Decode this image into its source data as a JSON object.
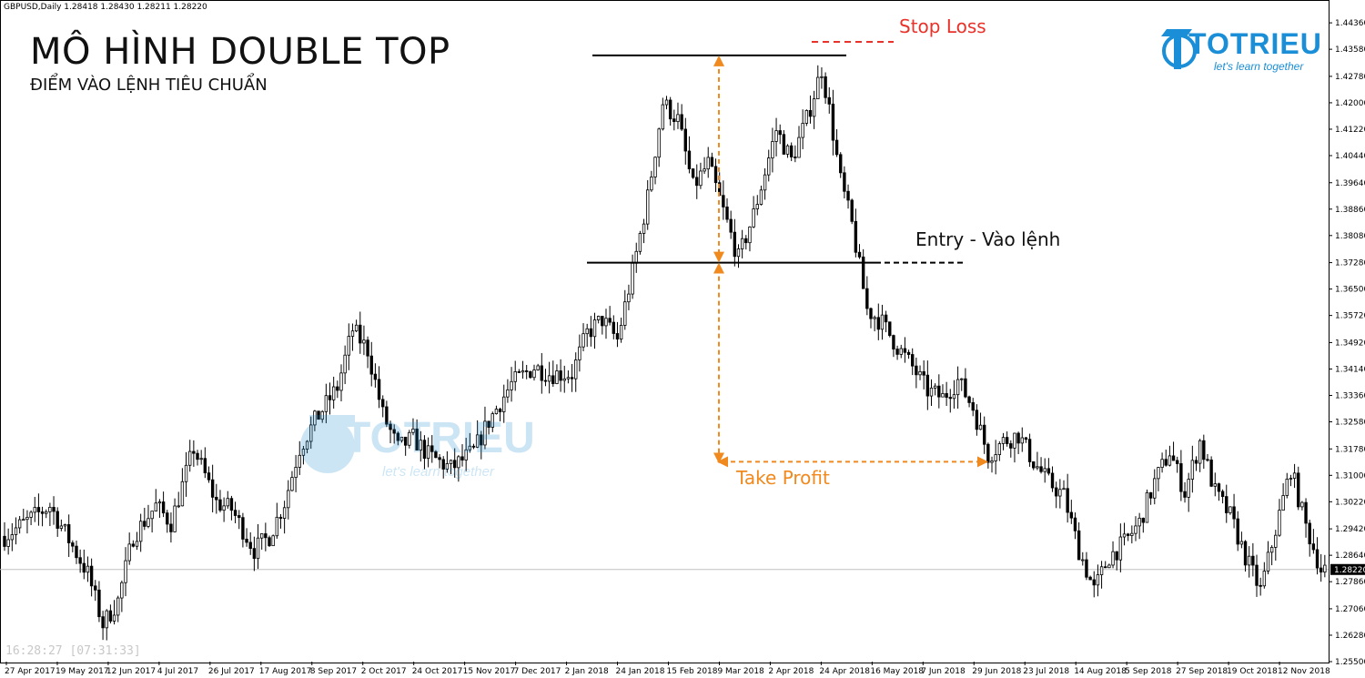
{
  "header": {
    "symbol_line": "GBPUSD,Daily  1.28418 1.28430 1.28211 1.28220",
    "title": "MÔ HÌNH DOUBLE TOP",
    "subtitle": "ĐIỂM VÀO LỆNH TIÊU CHUẨN",
    "server_time": "16:28:27 [07:31:33]"
  },
  "logo": {
    "name": "TOTRIEU",
    "tagline": "let's learn together",
    "color": "#1a8ed6"
  },
  "annotations": {
    "stop_loss": "Stop Loss",
    "entry": "Entry - Vào lệnh",
    "take_profit": "Take Profit"
  },
  "colors": {
    "stop_loss": "#e8322a",
    "take_profit": "#f0891e",
    "candle": "#000000",
    "text": "#111111"
  },
  "chart_data": {
    "type": "candlestick",
    "symbol": "GBPUSD",
    "timeframe": "Daily",
    "last_price": 1.2822,
    "ylim": [
      1.255,
      1.449
    ],
    "y_ticks": [
      "1.44360",
      "1.43580",
      "1.42780",
      "1.42000",
      "1.41220",
      "1.40440",
      "1.39640",
      "1.38860",
      "1.38080",
      "1.37280",
      "1.36500",
      "1.35720",
      "1.34920",
      "1.34140",
      "1.33360",
      "1.32580",
      "1.31780",
      "1.31000",
      "1.30220",
      "1.29420",
      "1.28640",
      "1.27860",
      "1.27060",
      "1.26280",
      "1.25500"
    ],
    "x_ticks": [
      "27 Apr 2017",
      "19 May 2017",
      "12 Jun 2017",
      "4 Jul 2017",
      "26 Jul 2017",
      "17 Aug 2017",
      "8 Sep 2017",
      "2 Oct 2017",
      "24 Oct 2017",
      "15 Nov 2017",
      "7 Dec 2017",
      "2 Jan 2018",
      "24 Jan 2018",
      "15 Feb 2018",
      "9 Mar 2018",
      "2 Apr 2018",
      "24 Apr 2018",
      "16 May 2018",
      "7 Jun 2018",
      "29 Jun 2018",
      "23 Jul 2018",
      "14 Aug 2018",
      "5 Sep 2018",
      "27 Sep 2018",
      "19 Oct 2018",
      "12 Nov 2018"
    ],
    "path": [
      [
        0,
        1.292
      ],
      [
        12,
        1.301
      ],
      [
        22,
        1.281
      ],
      [
        26,
        1.266
      ],
      [
        30,
        1.273
      ],
      [
        34,
        1.292
      ],
      [
        40,
        1.301
      ],
      [
        44,
        1.296
      ],
      [
        50,
        1.318
      ],
      [
        56,
        1.302
      ],
      [
        60,
        1.3
      ],
      [
        66,
        1.288
      ],
      [
        70,
        1.292
      ],
      [
        74,
        1.302
      ],
      [
        78,
        1.318
      ],
      [
        82,
        1.326
      ],
      [
        88,
        1.336
      ],
      [
        92,
        1.353
      ],
      [
        96,
        1.347
      ],
      [
        100,
        1.328
      ],
      [
        104,
        1.318
      ],
      [
        108,
        1.321
      ],
      [
        112,
        1.316
      ],
      [
        118,
        1.312
      ],
      [
        124,
        1.317
      ],
      [
        128,
        1.326
      ],
      [
        134,
        1.337
      ],
      [
        140,
        1.342
      ],
      [
        144,
        1.34
      ],
      [
        150,
        1.34
      ],
      [
        154,
        1.352
      ],
      [
        158,
        1.356
      ],
      [
        162,
        1.35
      ],
      [
        166,
        1.37
      ],
      [
        170,
        1.392
      ],
      [
        174,
        1.42
      ],
      [
        178,
        1.415
      ],
      [
        182,
        1.395
      ],
      [
        186,
        1.402
      ],
      [
        190,
        1.388
      ],
      [
        194,
        1.374
      ],
      [
        198,
        1.387
      ],
      [
        204,
        1.412
      ],
      [
        208,
        1.403
      ],
      [
        212,
        1.415
      ],
      [
        216,
        1.43
      ],
      [
        218,
        1.418
      ],
      [
        221,
        1.397
      ],
      [
        224,
        1.384
      ],
      [
        228,
        1.359
      ],
      [
        232,
        1.355
      ],
      [
        236,
        1.348
      ],
      [
        240,
        1.342
      ],
      [
        244,
        1.335
      ],
      [
        248,
        1.333
      ],
      [
        252,
        1.338
      ],
      [
        256,
        1.33
      ],
      [
        260,
        1.316
      ],
      [
        264,
        1.32
      ],
      [
        268,
        1.322
      ],
      [
        272,
        1.314
      ],
      [
        276,
        1.308
      ],
      [
        280,
        1.304
      ],
      [
        284,
        1.288
      ],
      [
        288,
        1.276
      ],
      [
        292,
        1.286
      ],
      [
        296,
        1.29
      ],
      [
        300,
        1.296
      ],
      [
        304,
        1.308
      ],
      [
        308,
        1.317
      ],
      [
        312,
        1.305
      ],
      [
        316,
        1.32
      ],
      [
        320,
        1.305
      ],
      [
        324,
        1.298
      ],
      [
        328,
        1.286
      ],
      [
        332,
        1.276
      ],
      [
        336,
        1.294
      ],
      [
        340,
        1.312
      ],
      [
        344,
        1.295
      ],
      [
        348,
        1.2822
      ]
    ],
    "levels": {
      "neckline": 1.3728,
      "top": 1.434,
      "stop_loss": 1.438,
      "take_profit": 1.314
    },
    "annotations": [
      {
        "text": "Stop Loss",
        "value": 1.438
      },
      {
        "text": "Entry - Vào lệnh",
        "value": 1.3728
      },
      {
        "text": "Take Profit",
        "value": 1.314
      }
    ]
  }
}
